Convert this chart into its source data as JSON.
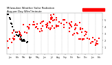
{
  "title": "Milwaukee Weather Solar Radiation",
  "subtitle": "Avg per Day W/m²/minute",
  "background_color": "#ffffff",
  "plot_bg_color": "#ffffff",
  "grid_color": "#aaaaaa",
  "ylim": [
    0,
    6
  ],
  "ytick_values": [
    1,
    2,
    3,
    4,
    5
  ],
  "ytick_labels": [
    "1",
    "2",
    "3",
    "4",
    "5"
  ],
  "xlim": [
    0,
    140
  ],
  "x_grid_positions": [
    10,
    20,
    30,
    40,
    50,
    60,
    70,
    80,
    90,
    100,
    110,
    120,
    130
  ],
  "x_tick_positions": [
    5,
    15,
    25,
    35,
    45,
    55,
    65,
    75,
    85,
    95,
    105,
    115,
    125,
    135
  ],
  "x_tick_labels": [
    "Jan",
    "Feb",
    "Mar",
    "Apr",
    "May",
    "Jun",
    "Jul",
    "Aug",
    "Sep",
    "Oct",
    "Nov",
    "Dec",
    "Jan",
    "Feb"
  ],
  "legend_color": "#ff0000",
  "black_seed": 10,
  "red_seed": 7
}
